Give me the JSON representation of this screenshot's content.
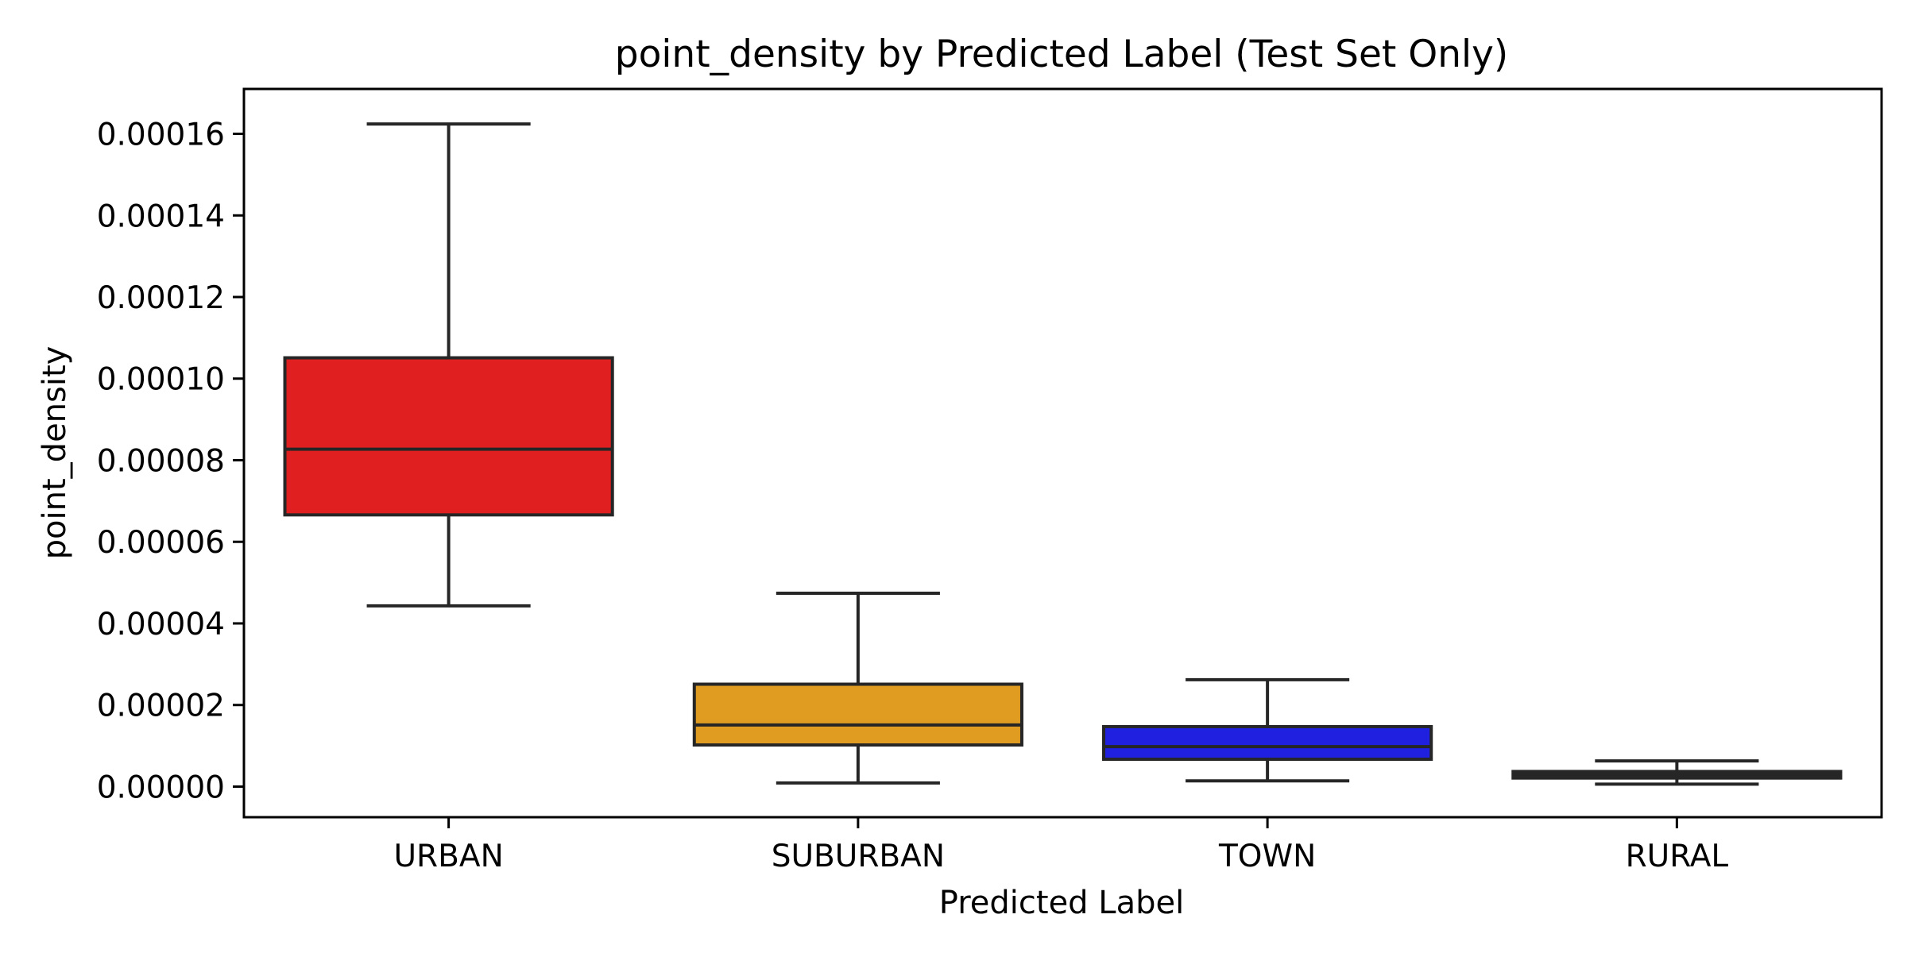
{
  "chart_data": {
    "type": "box",
    "title": "point_density by Predicted Label (Test Set Only)",
    "xlabel": "Predicted Label",
    "ylabel": "point_density",
    "ylim": [
      -7.5e-06,
      0.000171
    ],
    "yticks": [
      0,
      2e-05,
      4e-05,
      6e-05,
      8e-05,
      0.0001,
      0.00012,
      0.00014,
      0.00016
    ],
    "ytick_labels": [
      "0.00000",
      "0.00002",
      "0.00004",
      "0.00006",
      "0.00008",
      "0.00010",
      "0.00012",
      "0.00014",
      "0.00016"
    ],
    "categories": [
      "URBAN",
      "SUBURBAN",
      "TOWN",
      "RURAL"
    ],
    "boxes": [
      {
        "label": "URBAN",
        "whisker_low": 4.43e-05,
        "q1": 6.66e-05,
        "median": 8.27e-05,
        "q3": 0.0001051,
        "whisker_high": 0.0001624,
        "color": "#e02020"
      },
      {
        "label": "SUBURBAN",
        "whisker_low": 9e-07,
        "q1": 1.02e-05,
        "median": 1.51e-05,
        "q3": 2.51e-05,
        "whisker_high": 4.74e-05,
        "color": "#e09c20"
      },
      {
        "label": "TOWN",
        "whisker_low": 1.4e-06,
        "q1": 6.7e-06,
        "median": 9.8e-06,
        "q3": 1.47e-05,
        "whisker_high": 2.62e-05,
        "color": "#2020e0"
      },
      {
        "label": "RURAL",
        "whisker_low": 6e-07,
        "q1": 2.1e-06,
        "median": 2.8e-06,
        "q3": 3.7e-06,
        "whisker_high": 6.3e-06,
        "color": "#262626"
      }
    ],
    "grid": false,
    "legend": "none"
  }
}
